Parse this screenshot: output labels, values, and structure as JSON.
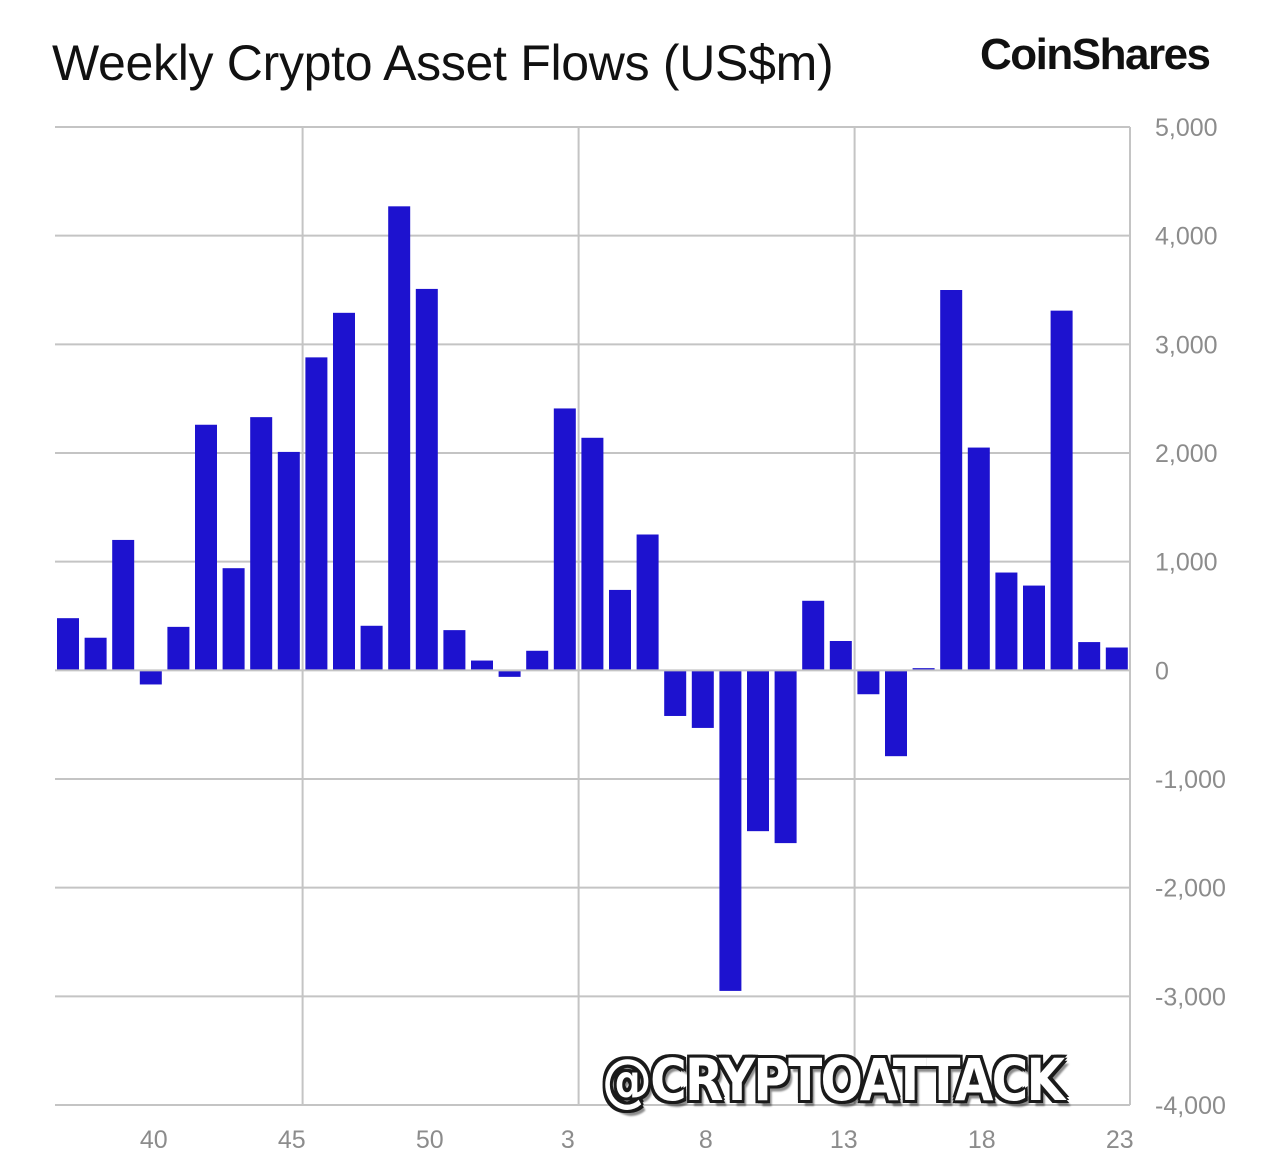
{
  "header": {
    "title": "Weekly Crypto Asset Flows (US$m)",
    "brand": "CoinShares"
  },
  "watermark": "@CRYPTOATTACK",
  "colors": {
    "bar": "#1d12cf",
    "grid": "#c4c4c4",
    "tick_text": "#8c8c8c",
    "zero_line": "#c4c4c4"
  },
  "chart_data": {
    "type": "bar",
    "title": "Weekly Crypto Asset Flows (US$m)",
    "xlabel": "",
    "ylabel": "",
    "ylim": [
      -4000,
      5000
    ],
    "y_ticks": [
      5000,
      4000,
      3000,
      2000,
      1000,
      0,
      -1000,
      -2000,
      -3000,
      -4000
    ],
    "y_tick_labels": [
      "5,000",
      "4,000",
      "3,000",
      "2,000",
      "1,000",
      "0",
      "-1,000",
      "-2,000",
      "-3,000",
      "-4,000"
    ],
    "y_axis_side": "right",
    "grid": true,
    "legend": "none",
    "x_tick_labels": [
      {
        "label": "40",
        "index": 3
      },
      {
        "label": "45",
        "index": 8
      },
      {
        "label": "50",
        "index": 13
      },
      {
        "label": "3",
        "index": 18
      },
      {
        "label": "8",
        "index": 23
      },
      {
        "label": "13",
        "index": 28
      },
      {
        "label": "18",
        "index": 33
      },
      {
        "label": "23",
        "index": 38
      }
    ],
    "vertical_gridline_indices": [
      9,
      19,
      29
    ],
    "values": [
      480,
      300,
      1200,
      -130,
      400,
      2260,
      940,
      2330,
      2010,
      2880,
      3290,
      410,
      4270,
      3510,
      370,
      90,
      -60,
      180,
      2410,
      2140,
      740,
      1250,
      -420,
      -530,
      -2950,
      -1480,
      -1590,
      640,
      270,
      -220,
      -790,
      20,
      3500,
      2050,
      900,
      780,
      3310,
      260,
      210
    ]
  }
}
